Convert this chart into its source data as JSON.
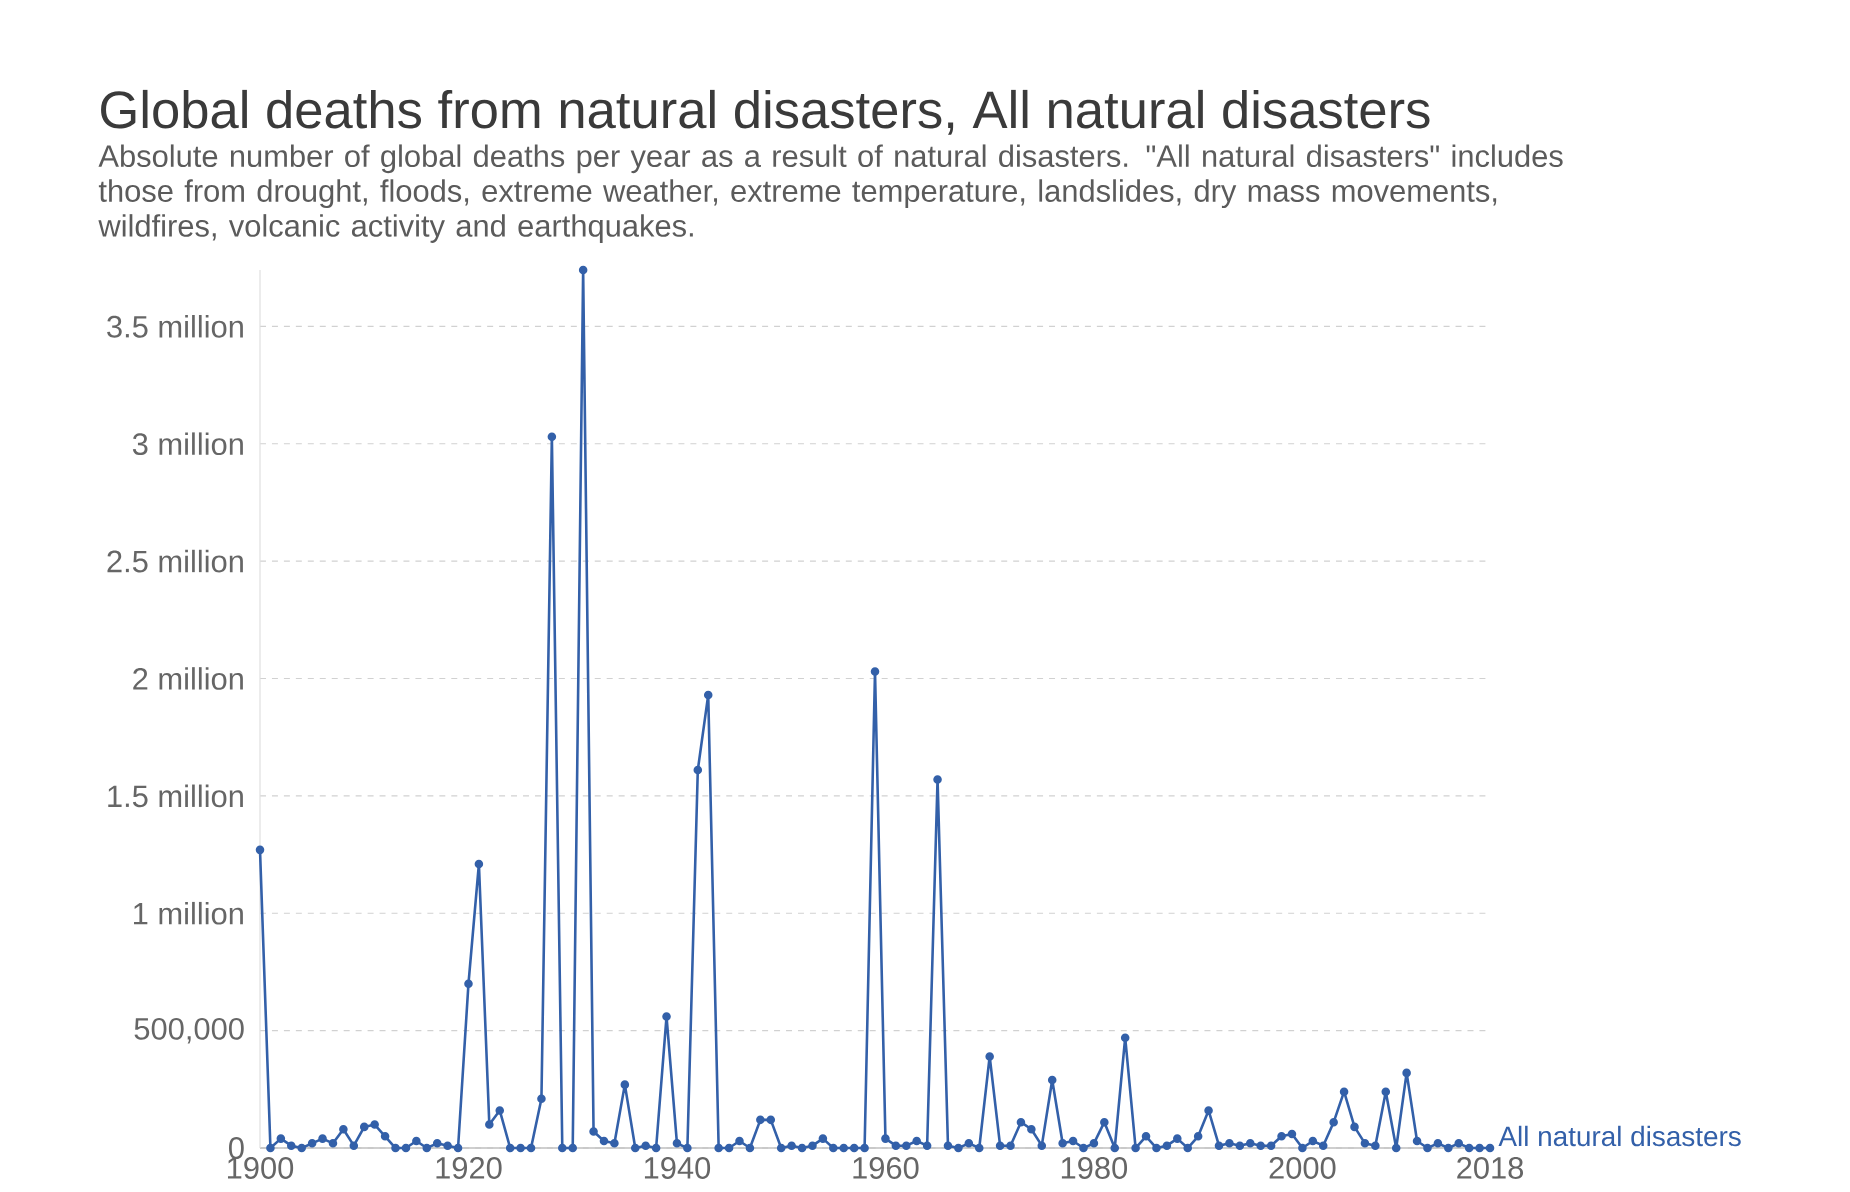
{
  "chart_data": {
    "type": "line",
    "title": "Global deaths from natural disasters, All natural disasters",
    "subtitle": "Absolute number of global deaths per year as a result of natural disasters. \"All natural disasters\" includes those from drought, floods, extreme weather, extreme temperature, landslides, dry mass movements, wildfires, volcanic activity and earthquakes.",
    "x": [
      1900,
      1901,
      1902,
      1903,
      1904,
      1905,
      1906,
      1907,
      1908,
      1909,
      1910,
      1911,
      1912,
      1913,
      1914,
      1915,
      1916,
      1917,
      1918,
      1919,
      1920,
      1921,
      1922,
      1923,
      1924,
      1925,
      1926,
      1927,
      1928,
      1929,
      1930,
      1931,
      1932,
      1933,
      1934,
      1935,
      1936,
      1937,
      1938,
      1939,
      1940,
      1941,
      1942,
      1943,
      1944,
      1945,
      1946,
      1947,
      1948,
      1949,
      1950,
      1951,
      1952,
      1953,
      1954,
      1955,
      1956,
      1957,
      1958,
      1959,
      1960,
      1961,
      1962,
      1963,
      1964,
      1965,
      1966,
      1967,
      1968,
      1969,
      1970,
      1971,
      1972,
      1973,
      1974,
      1975,
      1976,
      1977,
      1978,
      1979,
      1980,
      1981,
      1982,
      1983,
      1984,
      1985,
      1986,
      1987,
      1988,
      1989,
      1990,
      1991,
      1992,
      1993,
      1994,
      1995,
      1996,
      1997,
      1998,
      1999,
      2000,
      2001,
      2002,
      2003,
      2004,
      2005,
      2006,
      2007,
      2008,
      2009,
      2010,
      2011,
      2012,
      2013,
      2014,
      2015,
      2016,
      2017,
      2018
    ],
    "series": [
      {
        "name": "All natural disasters",
        "color": "#3360a9",
        "values": [
          1270000,
          0,
          40000,
          10000,
          0,
          20000,
          40000,
          20000,
          80000,
          10000,
          90000,
          100000,
          50000,
          0,
          0,
          30000,
          0,
          20000,
          10000,
          0,
          700000,
          1210000,
          100000,
          160000,
          0,
          0,
          0,
          210000,
          3030000,
          0,
          0,
          3740000,
          70000,
          30000,
          20000,
          270000,
          0,
          10000,
          0,
          560000,
          20000,
          0,
          1610000,
          1930000,
          0,
          0,
          30000,
          0,
          120000,
          120000,
          0,
          10000,
          0,
          10000,
          40000,
          0,
          0,
          0,
          0,
          2030000,
          40000,
          10000,
          10000,
          30000,
          10000,
          1570000,
          10000,
          0,
          20000,
          0,
          390000,
          10000,
          10000,
          110000,
          80000,
          10000,
          290000,
          20000,
          30000,
          0,
          20000,
          110000,
          0,
          470000,
          0,
          50000,
          0,
          10000,
          40000,
          0,
          50000,
          160000,
          10000,
          20000,
          10000,
          20000,
          10000,
          10000,
          50000,
          60000,
          0,
          30000,
          10000,
          110000,
          240000,
          90000,
          20000,
          10000,
          240000,
          0,
          320000,
          30000,
          0,
          20000,
          0,
          20000,
          0,
          0,
          0
        ]
      }
    ],
    "xlim": [
      1900,
      2018
    ],
    "ylim": [
      0,
      3740000
    ],
    "xticks": [
      1900,
      1920,
      1940,
      1960,
      1980,
      2000,
      2018
    ],
    "yticks": [
      0,
      {
        "value": 500000,
        "label": "500,000"
      },
      {
        "value": 1000000,
        "label": "1 million"
      },
      {
        "value": 1500000,
        "label": "1.5 million"
      },
      {
        "value": 2000000,
        "label": "2 million"
      },
      {
        "value": 2500000,
        "label": "2.5 million"
      },
      {
        "value": 3000000,
        "label": "3 million"
      },
      {
        "value": 3500000,
        "label": "3.5 million"
      }
    ],
    "grid": "y",
    "marker": "circle"
  }
}
